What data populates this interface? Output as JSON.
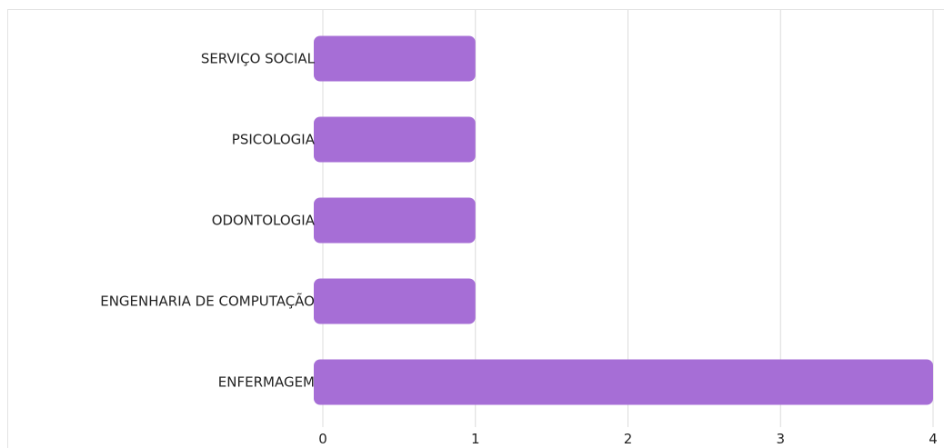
{
  "chart_data": {
    "type": "bar",
    "orientation": "horizontal",
    "categories": [
      "SERVIÇO SOCIAL",
      "PSICOLOGIA",
      "ODONTOLOGIA",
      "ENGENHARIA DE COMPUTAÇÃO",
      "ENFERMAGEM"
    ],
    "values": [
      1,
      1,
      1,
      1,
      4
    ],
    "xlim": [
      0,
      4
    ],
    "xticks": [
      "0",
      "1",
      "2",
      "3",
      "4"
    ],
    "grid": true,
    "bar_color": "#a66ed6",
    "grid_color": "#dcdcdc"
  }
}
